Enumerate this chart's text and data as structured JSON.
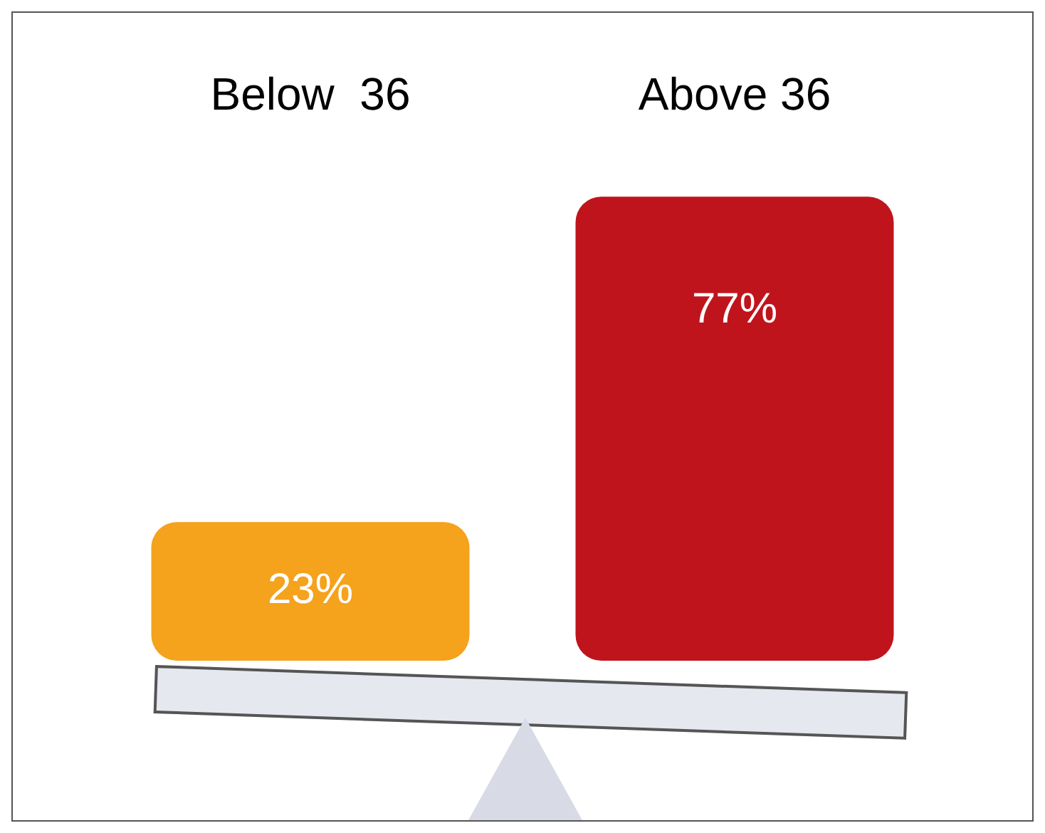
{
  "chart_data": {
    "type": "bar",
    "categories": [
      "Below  36",
      "Above 36"
    ],
    "values": [
      23,
      77
    ],
    "colors": [
      "#f5a21c",
      "#c0141c"
    ],
    "data_labels": true,
    "value_labels": [
      "23%",
      "77%"
    ]
  }
}
